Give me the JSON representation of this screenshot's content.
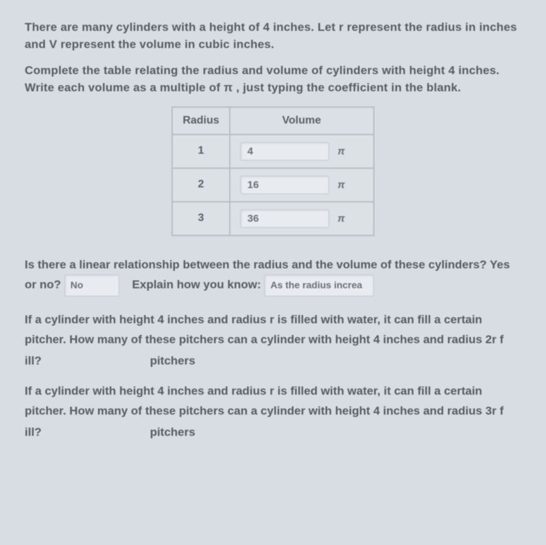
{
  "intro1": "There are many cylinders with a height of 4 inches. Let r represent the radius in inches and V represent the volume in cubic inches.",
  "intro2": "Complete the table relating the radius and volume of cylinders with height 4 inches. Write each volume as a multiple of π , just typing the coefficient in the blank.",
  "table": {
    "headers": {
      "radius": "Radius",
      "volume": "Volume"
    },
    "rows": [
      {
        "radius": "1",
        "volume_value": "4",
        "pi": "π"
      },
      {
        "radius": "2",
        "volume_value": "16",
        "pi": "π"
      },
      {
        "radius": "3",
        "volume_value": "36",
        "pi": "π"
      }
    ],
    "colors": {
      "border": "#b9bec6",
      "cell_bg": "#dce1e6",
      "input_bg": "#e8ebef",
      "input_border": "#c5cad2",
      "text": "#5b5f68"
    },
    "font_size_pt": 12
  },
  "q1": {
    "line1": "Is there a linear relationship between the radius and the volume of these cylinders? Yes",
    "or_no": "or no?",
    "answer": "No",
    "explain_label": "Explain how you know:",
    "explain_value": "As the radius increa"
  },
  "q2": {
    "text": "If a cylinder with height 4 inches and radius r is filled with water, it can fill a certain pitcher. How many of these pitchers can a cylinder with height 4 inches and radius 2r f",
    "ill_label": "ill?",
    "unit": "pitchers",
    "value": ""
  },
  "q3": {
    "text": "If a cylinder with height 4 inches and radius r is filled with water, it can fill a certain pitcher. How many of these pitchers can a cylinder with height 4 inches and radius 3r f",
    "ill_label": "ill?",
    "unit": "pitchers",
    "value": ""
  },
  "page_bg": "#d8dde3",
  "text_color": "#565a62"
}
